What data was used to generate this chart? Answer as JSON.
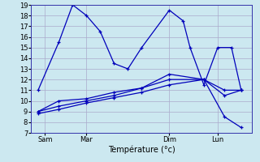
{
  "xlabel": "Température (°c)",
  "background_color": "#cce8f0",
  "grid_color": "#aaaacc",
  "line_color": "#0000bb",
  "ylim": [
    7,
    19
  ],
  "yticks": [
    7,
    8,
    9,
    10,
    11,
    12,
    13,
    14,
    15,
    16,
    17,
    18,
    19
  ],
  "xlim": [
    0,
    16
  ],
  "xtick_labels": [
    "Sam",
    "Mar",
    "Dim",
    "Lun"
  ],
  "xtick_positions": [
    1,
    4,
    10,
    13.5
  ],
  "series": [
    {
      "x": [
        0.5,
        2,
        3,
        4,
        5,
        6,
        7,
        8,
        10,
        11,
        11.5,
        12.5,
        13.5,
        14.5,
        15.2
      ],
      "y": [
        11,
        15.5,
        19,
        18,
        16.5,
        13.5,
        13,
        15,
        18.5,
        17.5,
        15,
        11.5,
        15,
        15,
        11
      ]
    },
    {
      "x": [
        0.5,
        2,
        4,
        6,
        8,
        10,
        12.5,
        14,
        15.2
      ],
      "y": [
        9.0,
        10.0,
        10.2,
        10.8,
        11.2,
        12.0,
        12.0,
        11.0,
        11.0
      ]
    },
    {
      "x": [
        0.5,
        2,
        4,
        6,
        8,
        10,
        12.5,
        14,
        15.2
      ],
      "y": [
        8.8,
        9.2,
        9.8,
        10.3,
        10.8,
        11.5,
        12.0,
        10.5,
        11.0
      ]
    },
    {
      "x": [
        0.5,
        2,
        4,
        6,
        8,
        10,
        12.5,
        14,
        15.2
      ],
      "y": [
        9.0,
        9.5,
        10.0,
        10.5,
        11.2,
        12.5,
        12.0,
        8.5,
        7.5
      ]
    }
  ]
}
